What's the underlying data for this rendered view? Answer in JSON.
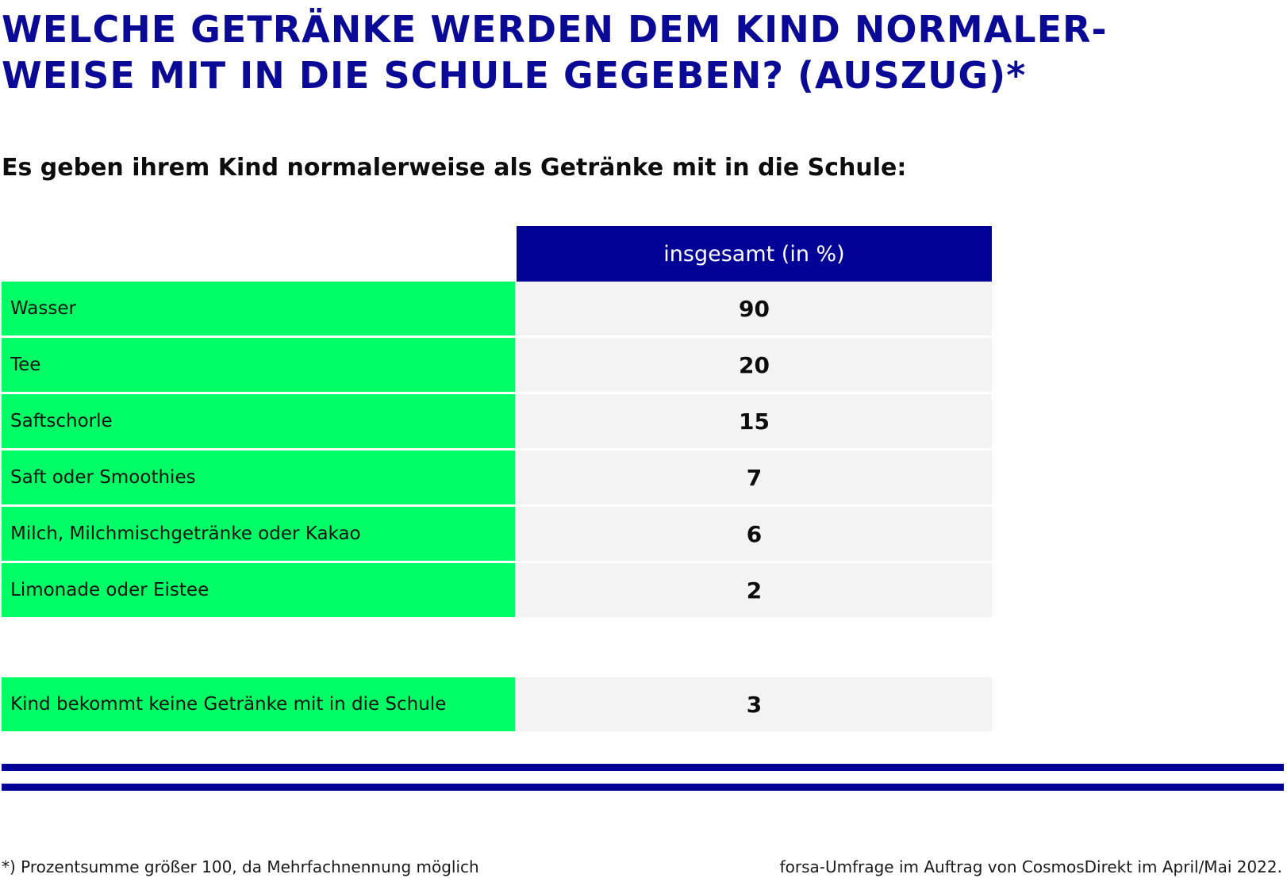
{
  "title": "WELCHE GETRÄNKE WERDEN DEM KIND NORMALER-\nWEISE MIT IN DIE SCHULE GEGEBEN? (AUSZUG)*",
  "subtitle": "Es geben ihrem Kind normalerweise als Getränke mit in die Schule:",
  "colors": {
    "accent_blue": "#020296",
    "title_blue": "#0a0a96",
    "label_green": "#00ff66",
    "value_bg": "#f3f3f3"
  },
  "chart_data": {
    "type": "table",
    "column_header": "insgesamt (in %)",
    "rows": [
      {
        "label": "Wasser",
        "value": 90
      },
      {
        "label": "Tee",
        "value": 20
      },
      {
        "label": "Saftschorle",
        "value": 15
      },
      {
        "label": "Saft oder Smoothies",
        "value": 7
      },
      {
        "label": "Milch, Milchmischgetränke oder Kakao",
        "value": 6
      },
      {
        "label": "Limonade oder Eistee",
        "value": 2
      }
    ],
    "extra_row": {
      "label": "Kind bekommt keine Getränke mit in die Schule",
      "value": 3
    }
  },
  "footnote": "*) Prozentsumme größer 100, da Mehrfachnennung möglich",
  "source": "forsa-Umfrage im Auftrag von CosmosDirekt im April/Mai 2022."
}
